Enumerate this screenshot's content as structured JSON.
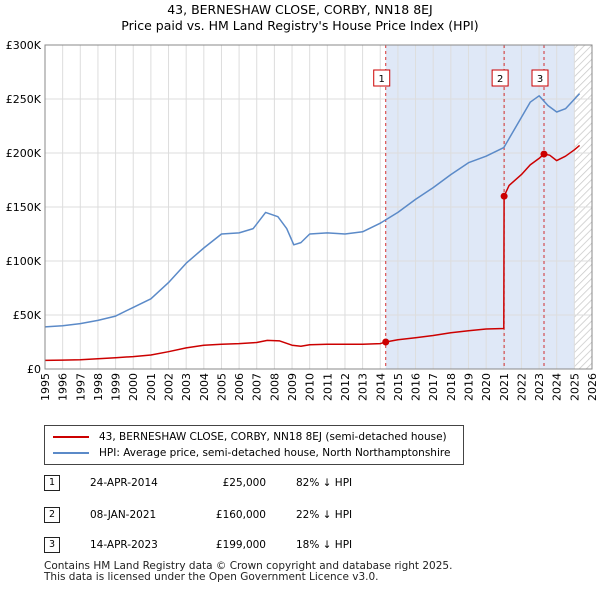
{
  "title_line1": "43, BERNESHAW CLOSE, CORBY, NN18 8EJ",
  "title_line2": "Price paid vs. HM Land Registry's House Price Index (HPI)",
  "colors": {
    "property": "#cc0000",
    "hpi": "#5b8ac8",
    "shade": "#dfe8f7",
    "grid": "#dddddd",
    "vline": "#cc0000"
  },
  "chart_data": {
    "type": "line",
    "title": "43, BERNESHAW CLOSE, CORBY, NN18 8EJ — Price paid vs. HM Land Registry's House Price Index (HPI)",
    "xlabel": "",
    "ylabel": "",
    "xlim": [
      1995,
      2026
    ],
    "ylim": [
      0,
      300000
    ],
    "y_ticks": [
      0,
      50000,
      100000,
      150000,
      200000,
      250000,
      300000
    ],
    "y_tick_labels": [
      "£0",
      "£50K",
      "£100K",
      "£150K",
      "£200K",
      "£250K",
      "£300K"
    ],
    "x_ticks": [
      1995,
      1996,
      1997,
      1998,
      1999,
      2000,
      2001,
      2002,
      2003,
      2004,
      2005,
      2006,
      2007,
      2008,
      2009,
      2010,
      2011,
      2012,
      2013,
      2014,
      2015,
      2016,
      2017,
      2018,
      2019,
      2020,
      2021,
      2022,
      2023,
      2024,
      2025,
      2026
    ],
    "x_tick_labels": [
      "1995",
      "1996",
      "1997",
      "1998",
      "1999",
      "2000",
      "2001",
      "2002",
      "2003",
      "2004",
      "2005",
      "2006",
      "2007",
      "2008",
      "2009",
      "2010",
      "2011",
      "2012",
      "2013",
      "2014",
      "2015",
      "2016",
      "2017",
      "2018",
      "2019",
      "2020",
      "2021",
      "2022",
      "2023",
      "2024",
      "2025",
      "2026"
    ],
    "grid": true,
    "shaded_region": [
      2014.31,
      2025.0
    ],
    "hatched_region": [
      2025.0,
      2026
    ],
    "series": [
      {
        "name": "43, BERNESHAW CLOSE, CORBY, NN18 8EJ (semi-detached house)",
        "color": "#cc0000",
        "x": [
          1995,
          1996,
          1997,
          1998,
          1999,
          2000,
          2001,
          2002,
          2003,
          2004,
          2005,
          2006,
          2007,
          2007.6,
          2008.3,
          2009,
          2009.5,
          2010,
          2011,
          2012,
          2013,
          2014,
          2014.31,
          2015,
          2016,
          2017,
          2018,
          2019,
          2020,
          2021.0,
          2021.02,
          2021.3,
          2022,
          2022.5,
          2023,
          2023.28,
          2023.6,
          2024,
          2024.5,
          2025.0,
          2025.3
        ],
        "y": [
          8000,
          8200,
          8500,
          9500,
          10500,
          11500,
          13000,
          16000,
          19500,
          22000,
          23000,
          23500,
          24500,
          26500,
          26000,
          22000,
          21000,
          22500,
          23000,
          23000,
          23000,
          23500,
          25000,
          27000,
          29000,
          31000,
          33500,
          35500,
          37000,
          37500,
          160000,
          170000,
          180000,
          189000,
          195000,
          199000,
          198000,
          193000,
          197000,
          203000,
          207000
        ]
      },
      {
        "name": "HPI: Average price, semi-detached house, North Northamptonshire",
        "color": "#5b8ac8",
        "x": [
          1995,
          1996,
          1997,
          1998,
          1999,
          2000,
          2001,
          2002,
          2003,
          2004,
          2005,
          2006,
          2006.8,
          2007.5,
          2008.2,
          2008.7,
          2009.1,
          2009.5,
          2010,
          2011,
          2012,
          2013,
          2014,
          2015,
          2016,
          2017,
          2018,
          2019,
          2020,
          2021,
          2022,
          2022.5,
          2023,
          2023.5,
          2024,
          2024.5,
          2025.3
        ],
        "y": [
          39000,
          40000,
          42000,
          45000,
          49000,
          57000,
          65000,
          80000,
          98000,
          112000,
          125000,
          126000,
          130000,
          145000,
          141000,
          130000,
          115000,
          117000,
          125000,
          126000,
          125000,
          127000,
          135000,
          145000,
          157000,
          168000,
          180000,
          191000,
          197000,
          205000,
          233000,
          247000,
          253000,
          244000,
          238000,
          241000,
          255000
        ]
      }
    ],
    "annotations": [
      {
        "label": "1",
        "x": 2014.31
      },
      {
        "label": "2",
        "x": 2021.02
      },
      {
        "label": "3",
        "x": 2023.28
      }
    ],
    "sale_points": [
      {
        "label": "1",
        "x": 2014.31,
        "y": 25000
      },
      {
        "label": "2",
        "x": 2021.02,
        "y": 160000
      },
      {
        "label": "3",
        "x": 2023.28,
        "y": 199000
      }
    ]
  },
  "legend": {
    "property_label": "43, BERNESHAW CLOSE, CORBY, NN18 8EJ (semi-detached house)",
    "hpi_label": "HPI: Average price, semi-detached house, North Northamptonshire"
  },
  "sales": [
    {
      "num": "1",
      "date": "24-APR-2014",
      "price": "£25,000",
      "hpi": "82% ↓ HPI"
    },
    {
      "num": "2",
      "date": "08-JAN-2021",
      "price": "£160,000",
      "hpi": "22% ↓ HPI"
    },
    {
      "num": "3",
      "date": "14-APR-2023",
      "price": "£199,000",
      "hpi": "18% ↓ HPI"
    }
  ],
  "footer": {
    "line1": "Contains HM Land Registry data © Crown copyright and database right 2025.",
    "line2": "This data is licensed under the Open Government Licence v3.0."
  }
}
